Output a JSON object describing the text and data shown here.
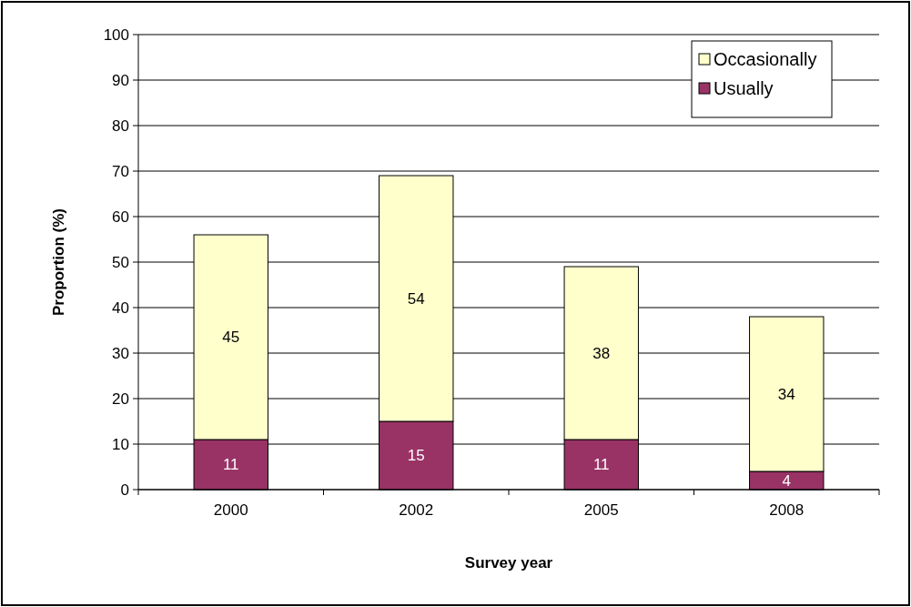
{
  "chart_data": {
    "type": "bar",
    "stacked": true,
    "xlabel": "Survey year",
    "ylabel": "Proportion (%)",
    "categories": [
      "2000",
      "2002",
      "2005",
      "2008"
    ],
    "series": [
      {
        "name": "Usually",
        "color": "#993366",
        "values": [
          11,
          15,
          11,
          4
        ]
      },
      {
        "name": "Occasionally",
        "color": "#ffffcc",
        "values": [
          45,
          54,
          38,
          34
        ]
      }
    ],
    "ylim": [
      0,
      100
    ],
    "yticks": [
      0,
      10,
      20,
      30,
      40,
      50,
      60,
      70,
      80,
      90,
      100
    ],
    "grid": "y",
    "legend": "top right",
    "data_labels": true
  }
}
